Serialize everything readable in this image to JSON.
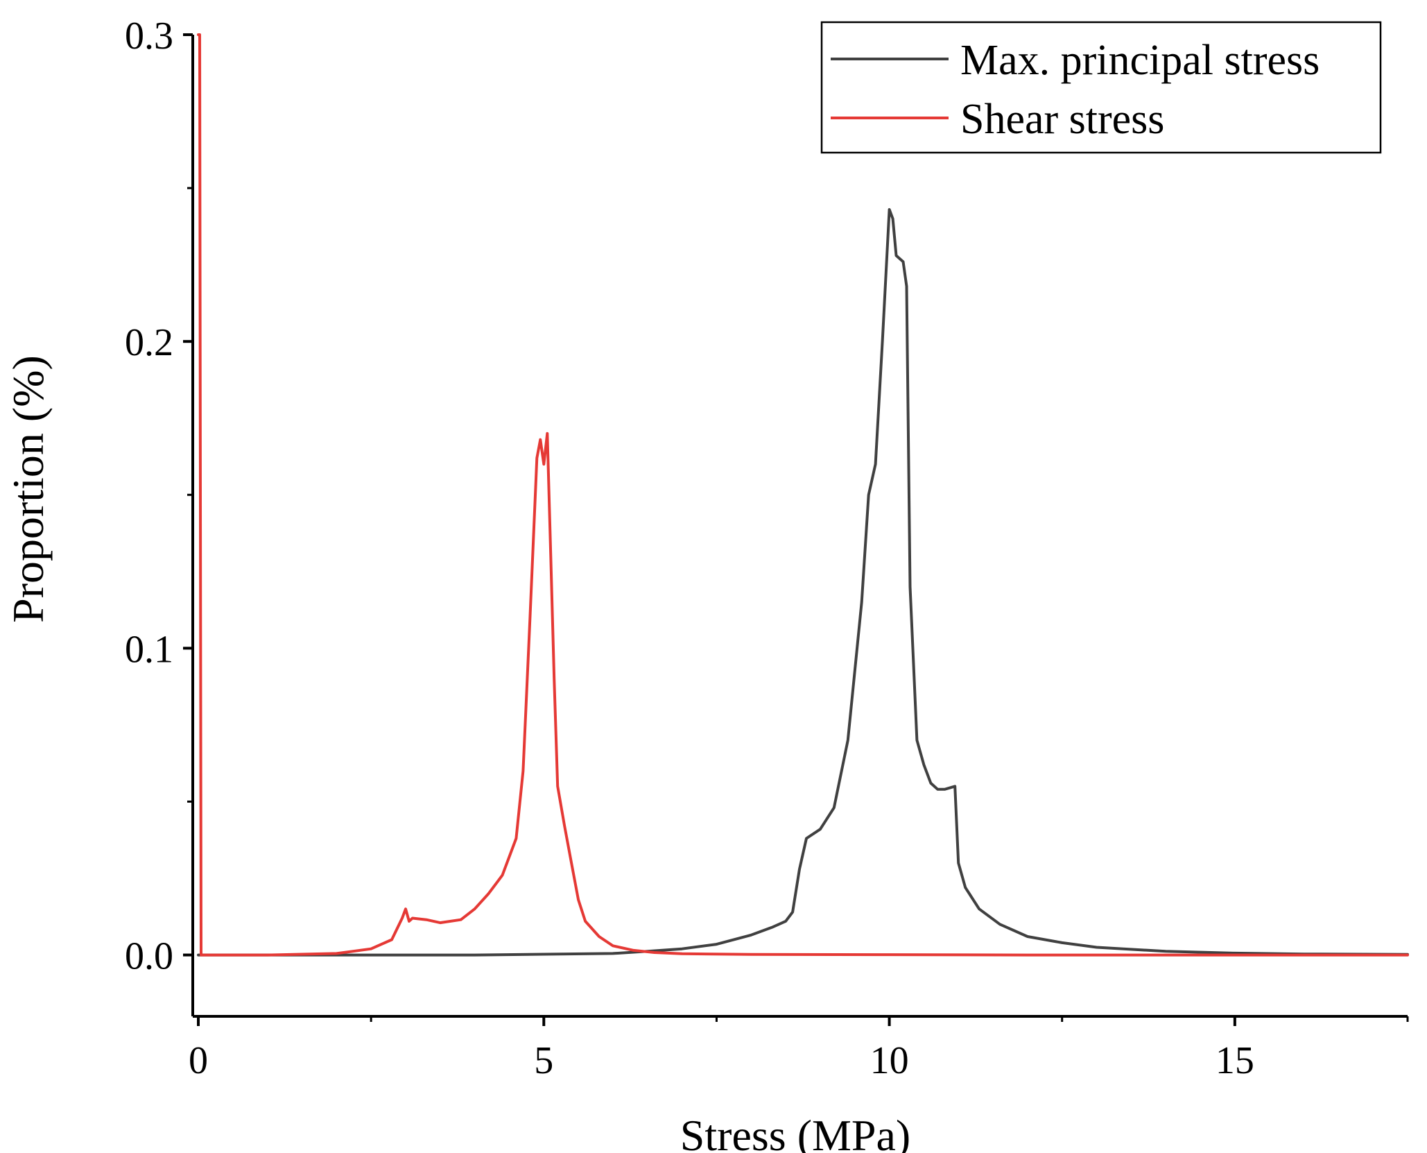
{
  "chart_data": {
    "type": "line",
    "title": "",
    "xlabel": "Stress (MPa)",
    "ylabel": "Proportion (%)",
    "xlim": [
      0,
      17.5
    ],
    "ylim": [
      -0.02,
      0.3
    ],
    "x_ticks": [
      0,
      5,
      10,
      15
    ],
    "x_tick_labels": [
      "0",
      "5",
      "10",
      "15"
    ],
    "y_ticks": [
      0.0,
      0.1,
      0.2,
      0.3
    ],
    "y_tick_labels": [
      "0.0",
      "0.1",
      "0.2",
      "0.3"
    ],
    "legend_position": "top-right",
    "series": [
      {
        "name": "Max. principal stress",
        "color": "#404040",
        "x": [
          0,
          2,
          4,
          6,
          6.5,
          7,
          7.5,
          8,
          8.3,
          8.5,
          8.6,
          8.7,
          8.8,
          9.0,
          9.2,
          9.4,
          9.6,
          9.7,
          9.8,
          9.9,
          10.0,
          10.05,
          10.1,
          10.2,
          10.25,
          10.3,
          10.4,
          10.5,
          10.6,
          10.7,
          10.8,
          10.95,
          11.0,
          11.1,
          11.3,
          11.6,
          12,
          12.5,
          13,
          14,
          15,
          16,
          17.5
        ],
        "values": [
          0.0,
          0.0,
          0.0,
          0.0005,
          0.0012,
          0.002,
          0.0035,
          0.0065,
          0.009,
          0.011,
          0.014,
          0.028,
          0.038,
          0.041,
          0.048,
          0.07,
          0.115,
          0.15,
          0.16,
          0.2,
          0.243,
          0.24,
          0.228,
          0.226,
          0.218,
          0.12,
          0.07,
          0.062,
          0.056,
          0.054,
          0.054,
          0.055,
          0.03,
          0.022,
          0.015,
          0.01,
          0.006,
          0.004,
          0.0025,
          0.0012,
          0.0006,
          0.0003,
          0.0002
        ]
      },
      {
        "name": "Shear stress",
        "color": "#e53935",
        "x": [
          0,
          0.02,
          0.04,
          0.1,
          1,
          2,
          2.5,
          2.8,
          2.95,
          3.0,
          3.05,
          3.1,
          3.3,
          3.5,
          3.8,
          4.0,
          4.2,
          4.4,
          4.6,
          4.7,
          4.8,
          4.9,
          4.95,
          5.0,
          5.05,
          5.1,
          5.15,
          5.2,
          5.3,
          5.4,
          5.5,
          5.6,
          5.8,
          6.0,
          6.3,
          6.6,
          7,
          8,
          10,
          12,
          15,
          17.5
        ],
        "values": [
          0.3,
          0.3,
          0.0,
          0.0,
          0.0,
          0.0005,
          0.002,
          0.005,
          0.012,
          0.015,
          0.011,
          0.012,
          0.0115,
          0.0105,
          0.0115,
          0.015,
          0.02,
          0.026,
          0.038,
          0.06,
          0.11,
          0.162,
          0.168,
          0.16,
          0.17,
          0.13,
          0.09,
          0.055,
          0.042,
          0.03,
          0.018,
          0.011,
          0.006,
          0.003,
          0.0015,
          0.0008,
          0.0004,
          0.0002,
          0.0001,
          0.0,
          0.0,
          0.0
        ]
      }
    ]
  }
}
